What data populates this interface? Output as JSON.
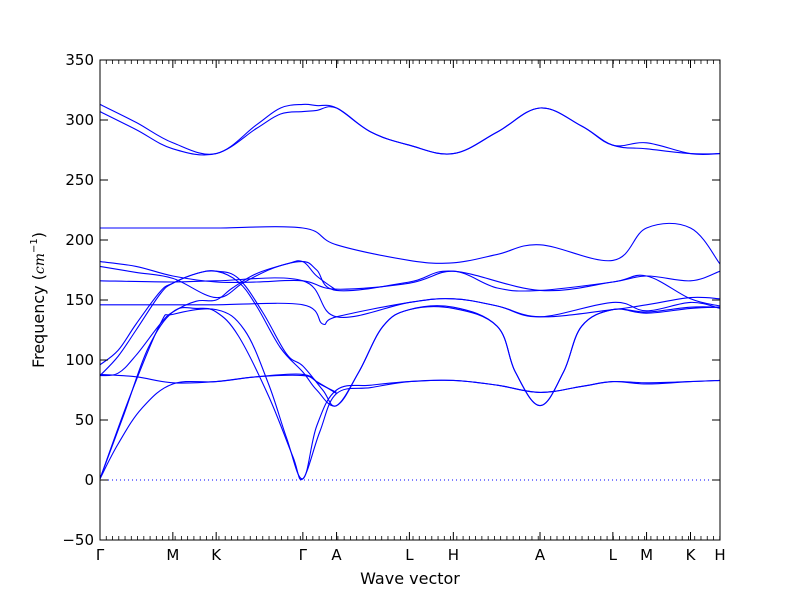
{
  "chart_data": {
    "type": "line",
    "xlabel": "Wave vector",
    "ylabel": "Frequency",
    "ylabel_unit": "cm",
    "ylabel_unit_exponent": "−1",
    "ylim": [
      -50,
      350
    ],
    "yticks": [
      -50,
      0,
      50,
      100,
      150,
      200,
      250,
      300,
      350
    ],
    "ytick_labels": [
      "−50",
      "0",
      "50",
      "100",
      "150",
      "200",
      "250",
      "300",
      "350"
    ],
    "xlim": [
      0,
      10.3
    ],
    "xticks": [
      {
        "label": "Γ",
        "x": 0.0
      },
      {
        "label": "M",
        "x": 1.21
      },
      {
        "label": "K",
        "x": 1.93
      },
      {
        "label": "Γ",
        "x": 3.37
      },
      {
        "label": "A",
        "x": 3.93
      },
      {
        "label": "L",
        "x": 5.14
      },
      {
        "label": "H",
        "x": 5.87
      },
      {
        "label": "A",
        "x": 7.31
      },
      {
        "label": "L",
        "x": 8.52
      },
      {
        "label": "M",
        "x": 9.08
      },
      {
        "label": "K",
        "x": 9.81
      },
      {
        "label": "H",
        "x": 10.3
      }
    ],
    "zero_line": {
      "y": 0,
      "style": "dotted"
    },
    "line_color": "#0000ff",
    "series": [
      {
        "x": [
          0,
          0.6,
          1.21,
          1.93,
          2.6,
          3.0,
          3.37,
          3.6,
          3.93,
          4.5,
          5.14,
          5.87,
          6.6,
          7.31,
          8.0,
          8.52,
          9.08,
          9.81,
          10.3
        ],
        "values": [
          313,
          298,
          281,
          272,
          296,
          310,
          313,
          312,
          310,
          290,
          279,
          272,
          290,
          310,
          295,
          279,
          281,
          272,
          272
        ]
      },
      {
        "x": [
          0,
          0.6,
          1.21,
          1.93,
          2.6,
          3.0,
          3.37,
          3.6,
          3.93,
          4.5,
          5.14,
          5.87,
          6.6,
          7.31,
          8.0,
          8.52,
          9.08,
          9.81,
          10.3
        ],
        "values": [
          307,
          292,
          276,
          272,
          293,
          305,
          307,
          308,
          310,
          290,
          279,
          272,
          290,
          310,
          295,
          279,
          276,
          272,
          272
        ]
      },
      {
        "x": [
          0,
          1.21,
          1.93,
          3.37,
          3.93,
          5.14,
          5.87,
          6.6,
          7.31,
          8.52,
          9.08,
          9.81,
          10.3
        ],
        "values": [
          210,
          210,
          210,
          210,
          196,
          183,
          181,
          188,
          196,
          183,
          210,
          210,
          180
        ]
      },
      {
        "x": [
          0,
          0.6,
          1.21,
          1.93,
          2.6,
          3.37,
          3.93,
          5.14,
          5.87,
          6.6,
          7.31,
          8.52,
          9.08,
          9.81,
          10.3
        ],
        "values": [
          182,
          178,
          170,
          165,
          165,
          166,
          159,
          164,
          174,
          160,
          158,
          165,
          170,
          166,
          174
        ]
      },
      {
        "x": [
          0,
          0.6,
          1.21,
          1.93,
          2.4,
          2.9,
          3.37,
          3.6,
          3.93,
          5.14,
          5.87,
          7.31,
          8.52,
          9.08,
          9.81,
          10.3
        ],
        "values": [
          178,
          173,
          168,
          152,
          165,
          177,
          182,
          175,
          158,
          165,
          174,
          158,
          165,
          170,
          151,
          145
        ]
      },
      {
        "x": [
          0,
          1.21,
          1.93,
          3.37,
          3.93,
          5.14,
          5.87,
          6.6,
          7.31,
          8.52,
          9.08,
          9.81,
          10.3
        ],
        "values": [
          166,
          165,
          166,
          166,
          136,
          148,
          151,
          145,
          136,
          148,
          141,
          148,
          143
        ]
      },
      {
        "x": [
          0,
          1.21,
          1.93,
          3.37,
          3.7,
          3.93,
          5.14,
          5.87,
          6.6,
          7.31,
          8.52,
          9.08,
          9.81,
          10.3
        ],
        "values": [
          146,
          146,
          146,
          146,
          130,
          136,
          148,
          151,
          145,
          136,
          142,
          146,
          152,
          151
        ]
      },
      {
        "x": [
          0,
          0.3,
          0.6,
          1.0,
          1.21,
          1.6,
          1.93,
          2.3,
          2.7,
          3.1,
          3.37,
          3.7,
          3.93,
          4.3,
          4.7,
          5.14,
          5.87,
          6.6,
          6.9,
          7.31,
          7.7,
          8.0,
          8.52,
          9.08,
          9.81,
          10.3
        ],
        "values": [
          96,
          108,
          130,
          157,
          164,
          172,
          174,
          168,
          140,
          105,
          95,
          75,
          62,
          90,
          128,
          142,
          143,
          128,
          90,
          62,
          90,
          128,
          142,
          139,
          143,
          144
        ]
      },
      {
        "x": [
          0,
          0.3,
          0.6,
          1.0,
          1.21,
          1.6,
          1.93,
          2.3,
          2.6,
          3.0,
          3.37,
          3.6,
          3.93,
          4.3,
          4.7,
          5.14,
          5.87,
          6.6,
          6.9,
          7.31,
          7.7,
          8.0,
          8.52,
          9.08,
          9.81,
          10.3
        ],
        "values": [
          87,
          103,
          125,
          155,
          164,
          172,
          174,
          165,
          145,
          110,
          90,
          75,
          62,
          90,
          128,
          142,
          144,
          128,
          90,
          62,
          90,
          128,
          142,
          140,
          144,
          144
        ]
      },
      {
        "x": [
          0,
          0.5,
          1.0,
          1.21,
          1.93,
          2.4,
          2.8,
          3.1,
          3.37,
          3.6,
          3.93,
          4.5,
          5.14,
          5.87,
          6.6,
          7.31,
          8.0,
          8.52,
          9.08,
          9.81,
          10.3
        ],
        "values": [
          1,
          70,
          130,
          138,
          142,
          125,
          80,
          35,
          1,
          45,
          75,
          79,
          82,
          83,
          79,
          73,
          78,
          82,
          81,
          82,
          83
        ]
      },
      {
        "x": [
          0,
          0.4,
          0.8,
          1.21,
          1.6,
          1.93,
          2.3,
          2.8,
          3.2,
          3.37,
          3.65,
          3.93,
          4.5,
          5.14,
          5.87,
          6.6,
          7.31,
          8.0,
          8.52,
          9.08,
          9.81,
          10.3
        ],
        "values": [
          1,
          55,
          110,
          140,
          143,
          140,
          120,
          70,
          20,
          1,
          40,
          72,
          77,
          82,
          83,
          79,
          73,
          78,
          82,
          80,
          82,
          83
        ]
      },
      {
        "x": [
          0,
          0.3,
          0.7,
          1.21,
          1.93,
          2.6,
          3.37,
          3.6,
          3.93
        ],
        "values": [
          1,
          30,
          60,
          80,
          82,
          86,
          87,
          82,
          72
        ]
      },
      {
        "x": [
          0,
          0.3,
          0.6,
          1.0,
          1.21,
          1.6,
          1.93,
          2.2,
          2.6,
          3.1,
          3.37,
          3.6,
          3.93
        ],
        "values": [
          87,
          89,
          104,
          130,
          140,
          149,
          150,
          160,
          172,
          180,
          182,
          170,
          158
        ]
      },
      {
        "x": [
          0,
          0.6,
          1.21,
          1.93,
          2.6,
          3.37,
          3.65,
          3.93
        ],
        "values": [
          88,
          86,
          81,
          82,
          86,
          88,
          80,
          73
        ]
      }
    ]
  }
}
